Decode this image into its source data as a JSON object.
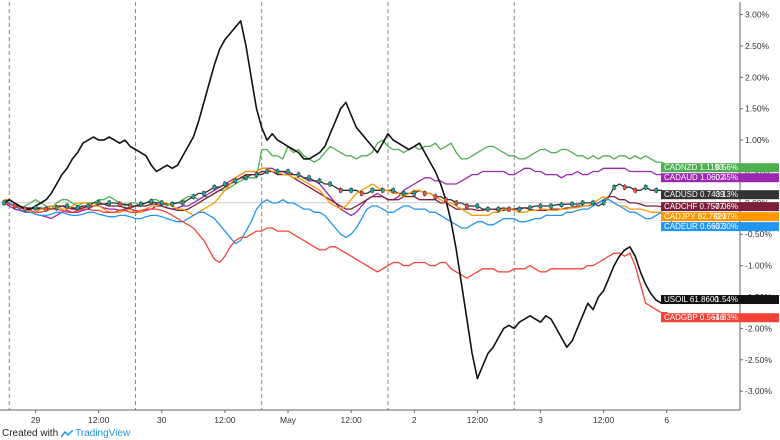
{
  "footer": {
    "prefix": "Created with",
    "brand": "TradingView"
  },
  "chart_data": {
    "type": "line",
    "y_axis": {
      "unit": "%",
      "range": [
        -3.3,
        3.2
      ],
      "ticks": [
        "3.00%",
        "2.50%",
        "2.00%",
        "1.50%",
        "1.00%",
        "0.50%",
        "0.00%",
        "-0.50%",
        "-1.00%",
        "-1.50%",
        "-2.00%",
        "-2.50%",
        "-3.00%"
      ],
      "tick_values": [
        3.0,
        2.5,
        2.0,
        1.5,
        1.0,
        0.5,
        0.0,
        -0.5,
        -1.0,
        -1.5,
        -2.0,
        -2.5,
        -3.0
      ],
      "position": "right"
    },
    "x_axis": {
      "ticks": [
        "29",
        "12:00",
        "30",
        "12:00",
        "May",
        "12:00",
        "2",
        "12:00",
        "3",
        "12:00",
        "6"
      ],
      "tick_index": [
        6,
        18,
        30,
        42,
        54,
        66,
        78,
        90,
        102,
        114,
        126
      ],
      "session_breaks": [
        1,
        25,
        49,
        73,
        97
      ]
    },
    "grid": false,
    "series": [
      {
        "name": "CADNZD",
        "last": "1.1193",
        "change": "0.56%",
        "color": "#4caf50",
        "values": [
          0.05,
          0.0,
          -0.05,
          -0.1,
          -0.05,
          0.0,
          0.05,
          0.0,
          -0.05,
          -0.1,
          0.0,
          0.05,
          0.05,
          0.0,
          -0.05,
          0.0,
          0.0,
          0.0,
          0.05,
          0.05,
          0.1,
          0.05,
          0.0,
          -0.05,
          0.0,
          0.0,
          -0.05,
          0.0,
          0.05,
          0.05,
          0.0,
          -0.05,
          0.0,
          0.0,
          0.05,
          0.1,
          0.1,
          0.05,
          0.1,
          0.1,
          0.15,
          0.2,
          0.2,
          0.25,
          0.3,
          0.35,
          0.4,
          0.4,
          0.4,
          0.85,
          0.85,
          0.75,
          0.75,
          0.7,
          0.9,
          0.8,
          0.85,
          0.75,
          0.7,
          0.65,
          0.7,
          0.8,
          0.9,
          0.85,
          0.8,
          0.75,
          0.75,
          0.7,
          0.75,
          0.75,
          0.8,
          0.95,
          1.0,
          0.9,
          0.85,
          0.85,
          0.8,
          0.85,
          0.9,
          0.85,
          0.9,
          0.9,
          0.95,
          0.85,
          0.9,
          0.95,
          0.8,
          0.7,
          0.7,
          0.75,
          0.8,
          0.85,
          0.9,
          0.9,
          0.85,
          0.8,
          0.75,
          0.75,
          0.7,
          0.7,
          0.75,
          0.8,
          0.85,
          0.85,
          0.8,
          0.8,
          0.85,
          0.85,
          0.8,
          0.75,
          0.75,
          0.7,
          0.75,
          0.7,
          0.75,
          0.75,
          0.7,
          0.75,
          0.75,
          0.7,
          0.75,
          0.7,
          0.75,
          0.7,
          0.65,
          0.65,
          0.6,
          0.56
        ]
      },
      {
        "name": "CADAUD",
        "last": "1.0602",
        "change": "0.45%",
        "color": "#9c27b0",
        "values": [
          0.0,
          -0.05,
          -0.1,
          -0.12,
          -0.15,
          -0.15,
          -0.18,
          -0.2,
          -0.22,
          -0.25,
          -0.2,
          -0.15,
          -0.12,
          -0.15,
          -0.15,
          -0.12,
          -0.1,
          -0.05,
          -0.05,
          -0.08,
          -0.1,
          -0.1,
          -0.12,
          -0.1,
          -0.1,
          -0.12,
          -0.15,
          -0.12,
          -0.1,
          -0.05,
          -0.05,
          -0.08,
          -0.1,
          -0.08,
          -0.05,
          -0.05,
          0.0,
          0.05,
          0.1,
          0.15,
          0.2,
          0.25,
          0.3,
          0.35,
          0.4,
          0.45,
          0.5,
          0.5,
          0.5,
          0.55,
          0.55,
          0.55,
          0.5,
          0.5,
          0.45,
          0.45,
          0.45,
          0.4,
          0.35,
          0.35,
          0.3,
          0.2,
          0.1,
          0.0,
          -0.1,
          -0.15,
          -0.2,
          -0.15,
          -0.05,
          0.05,
          0.1,
          0.15,
          0.1,
          0.05,
          0.05,
          0.1,
          0.2,
          0.25,
          0.3,
          0.35,
          0.4,
          0.4,
          0.35,
          0.35,
          0.3,
          0.3,
          0.3,
          0.35,
          0.4,
          0.45,
          0.45,
          0.5,
          0.5,
          0.5,
          0.5,
          0.5,
          0.45,
          0.45,
          0.5,
          0.55,
          0.55,
          0.5,
          0.5,
          0.45,
          0.45,
          0.45,
          0.4,
          0.45,
          0.45,
          0.5,
          0.45,
          0.45,
          0.5,
          0.5,
          0.55,
          0.55,
          0.55,
          0.55,
          0.55,
          0.5,
          0.5,
          0.5,
          0.5,
          0.5,
          0.45,
          0.45,
          0.45,
          0.45
        ]
      },
      {
        "name": "CADUSD",
        "last": "0.7439",
        "change": "0.13%",
        "color": "#333333",
        "values": [
          0.0,
          0.0,
          -0.05,
          -0.05,
          -0.1,
          -0.1,
          -0.08,
          -0.08,
          -0.1,
          -0.1,
          -0.08,
          -0.05,
          -0.05,
          -0.08,
          -0.08,
          -0.05,
          -0.05,
          0.0,
          0.0,
          -0.02,
          0.0,
          0.0,
          -0.02,
          -0.02,
          -0.05,
          -0.05,
          -0.02,
          0.0,
          0.02,
          0.0,
          0.0,
          -0.02,
          -0.02,
          0.0,
          0.0,
          0.05,
          0.1,
          0.15,
          0.15,
          0.2,
          0.25,
          0.25,
          0.3,
          0.3,
          0.35,
          0.4,
          0.4,
          0.45,
          0.45,
          0.45,
          0.5,
          0.5,
          0.5,
          0.5,
          0.5,
          0.45,
          0.45,
          0.4,
          0.4,
          0.35,
          0.35,
          0.3,
          0.3,
          0.25,
          0.2,
          0.2,
          0.2,
          0.2,
          0.15,
          0.15,
          0.2,
          0.2,
          0.2,
          0.2,
          0.2,
          0.15,
          0.15,
          0.15,
          0.15,
          0.2,
          0.15,
          0.15,
          0.1,
          0.1,
          0.05,
          0.05,
          0.0,
          0.0,
          -0.05,
          -0.05,
          -0.05,
          -0.1,
          -0.1,
          -0.1,
          -0.1,
          -0.08,
          -0.1,
          -0.1,
          -0.1,
          -0.08,
          -0.08,
          -0.05,
          -0.05,
          -0.05,
          -0.05,
          -0.03,
          -0.03,
          -0.02,
          -0.02,
          -0.02,
          0.0,
          0.0,
          0.0,
          -0.05,
          0.0,
          0.1,
          0.25,
          0.3,
          0.25,
          0.25,
          0.2,
          0.2,
          0.25,
          0.2,
          0.2,
          0.2,
          0.15,
          0.13
        ]
      },
      {
        "name": "CADCHF",
        "last": "0.7577",
        "change": "-0.06%",
        "color": "#7b1f3a",
        "values": [
          0.0,
          -0.02,
          -0.05,
          -0.05,
          -0.08,
          -0.08,
          -0.1,
          -0.1,
          -0.08,
          -0.05,
          -0.05,
          -0.05,
          -0.08,
          -0.1,
          -0.1,
          -0.08,
          -0.05,
          -0.05,
          -0.02,
          -0.02,
          -0.05,
          -0.05,
          -0.05,
          -0.08,
          -0.08,
          -0.05,
          -0.05,
          -0.05,
          -0.02,
          -0.02,
          -0.05,
          -0.08,
          -0.1,
          -0.12,
          -0.12,
          -0.1,
          -0.05,
          0.0,
          0.05,
          0.1,
          0.15,
          0.2,
          0.25,
          0.3,
          0.35,
          0.4,
          0.45,
          0.45,
          0.45,
          0.5,
          0.5,
          0.5,
          0.45,
          0.45,
          0.45,
          0.4,
          0.35,
          0.3,
          0.25,
          0.2,
          0.15,
          0.1,
          0.05,
          0.0,
          -0.05,
          -0.1,
          -0.1,
          -0.05,
          0.0,
          0.05,
          0.1,
          0.1,
          0.1,
          0.05,
          0.05,
          0.05,
          0.1,
          0.1,
          0.1,
          0.05,
          0.05,
          0.05,
          0.05,
          0.0,
          0.0,
          -0.05,
          -0.1,
          -0.1,
          -0.1,
          -0.1,
          -0.12,
          -0.12,
          -0.1,
          -0.1,
          -0.12,
          -0.12,
          -0.1,
          -0.1,
          -0.08,
          -0.08,
          -0.1,
          -0.12,
          -0.12,
          -0.12,
          -0.1,
          -0.1,
          -0.1,
          -0.08,
          -0.08,
          -0.05,
          -0.05,
          -0.05,
          -0.02,
          0.0,
          0.05,
          0.1,
          0.1,
          0.05,
          0.05,
          0.0,
          0.0,
          -0.02,
          -0.05,
          -0.05,
          -0.05,
          -0.06,
          -0.06,
          -0.06
        ]
      },
      {
        "name": "CADJPY",
        "last": "82.7520",
        "change": "-0.17%",
        "color": "#ff9800",
        "values": [
          0.05,
          0.05,
          0.0,
          -0.05,
          -0.1,
          -0.15,
          -0.15,
          -0.1,
          -0.1,
          -0.05,
          -0.05,
          -0.1,
          -0.1,
          -0.05,
          0.0,
          0.0,
          0.0,
          -0.05,
          -0.05,
          -0.1,
          -0.15,
          -0.15,
          -0.15,
          -0.12,
          -0.1,
          -0.15,
          -0.15,
          -0.1,
          -0.05,
          -0.05,
          0.0,
          0.0,
          -0.05,
          -0.1,
          -0.1,
          -0.15,
          -0.2,
          -0.15,
          -0.1,
          -0.05,
          0.0,
          0.1,
          0.2,
          0.3,
          0.4,
          0.45,
          0.5,
          0.5,
          0.5,
          0.55,
          0.55,
          0.5,
          0.5,
          0.45,
          0.45,
          0.4,
          0.4,
          0.35,
          0.3,
          0.25,
          0.2,
          0.1,
          0.0,
          -0.05,
          -0.1,
          -0.05,
          0.05,
          0.15,
          0.2,
          0.25,
          0.3,
          0.25,
          0.2,
          0.2,
          0.15,
          0.15,
          0.1,
          0.15,
          0.2,
          0.2,
          0.15,
          0.15,
          0.1,
          0.05,
          0.0,
          0.0,
          -0.05,
          -0.1,
          -0.15,
          -0.2,
          -0.2,
          -0.2,
          -0.2,
          -0.15,
          -0.15,
          -0.1,
          -0.1,
          -0.12,
          -0.15,
          -0.15,
          -0.12,
          -0.12,
          -0.1,
          -0.1,
          -0.12,
          -0.12,
          -0.1,
          -0.1,
          -0.08,
          -0.08,
          -0.05,
          -0.05,
          0.0,
          0.05,
          0.1,
          0.05,
          0.0,
          -0.05,
          -0.05,
          -0.1,
          -0.1,
          -0.1,
          -0.12,
          -0.15,
          -0.15,
          -0.15,
          -0.17,
          -0.17
        ]
      },
      {
        "name": "CADEUR",
        "last": "0.6637",
        "change": "-0.30%",
        "color": "#2196f3",
        "values": [
          0.0,
          0.0,
          -0.05,
          -0.1,
          -0.15,
          -0.15,
          -0.18,
          -0.2,
          -0.2,
          -0.18,
          -0.15,
          -0.15,
          -0.18,
          -0.2,
          -0.2,
          -0.18,
          -0.15,
          -0.15,
          -0.18,
          -0.2,
          -0.22,
          -0.22,
          -0.2,
          -0.2,
          -0.22,
          -0.25,
          -0.25,
          -0.22,
          -0.2,
          -0.2,
          -0.22,
          -0.25,
          -0.28,
          -0.3,
          -0.3,
          -0.25,
          -0.2,
          -0.15,
          -0.15,
          -0.2,
          -0.25,
          -0.35,
          -0.45,
          -0.55,
          -0.65,
          -0.6,
          -0.45,
          -0.3,
          -0.1,
          0.0,
          0.05,
          0.0,
          0.0,
          0.05,
          0.0,
          0.0,
          -0.05,
          -0.1,
          -0.1,
          -0.15,
          -0.15,
          -0.2,
          -0.3,
          -0.4,
          -0.5,
          -0.55,
          -0.5,
          -0.4,
          -0.25,
          -0.1,
          -0.05,
          -0.05,
          -0.1,
          -0.15,
          -0.15,
          -0.1,
          -0.05,
          -0.05,
          -0.1,
          -0.1,
          -0.1,
          -0.15,
          -0.15,
          -0.2,
          -0.25,
          -0.3,
          -0.35,
          -0.4,
          -0.4,
          -0.35,
          -0.3,
          -0.3,
          -0.35,
          -0.35,
          -0.3,
          -0.25,
          -0.25,
          -0.25,
          -0.3,
          -0.3,
          -0.28,
          -0.25,
          -0.25,
          -0.2,
          -0.2,
          -0.2,
          -0.2,
          -0.15,
          -0.15,
          -0.12,
          -0.1,
          -0.1,
          -0.05,
          0.0,
          0.05,
          0.05,
          0.0,
          -0.05,
          -0.1,
          -0.15,
          -0.15,
          -0.2,
          -0.25,
          -0.25,
          -0.2,
          -0.15,
          -0.2,
          -0.3
        ]
      },
      {
        "name": "CADGBP",
        "last": "0.5646",
        "change": "-1.83%",
        "color": "#f44336",
        "values": [
          0.0,
          -0.02,
          -0.05,
          -0.08,
          -0.1,
          -0.12,
          -0.15,
          -0.15,
          -0.12,
          -0.1,
          -0.1,
          -0.12,
          -0.15,
          -0.15,
          -0.12,
          -0.1,
          -0.1,
          -0.12,
          -0.12,
          -0.15,
          -0.15,
          -0.15,
          -0.12,
          -0.12,
          -0.15,
          -0.15,
          -0.12,
          -0.1,
          -0.1,
          -0.1,
          -0.12,
          -0.15,
          -0.2,
          -0.25,
          -0.3,
          -0.35,
          -0.4,
          -0.5,
          -0.6,
          -0.75,
          -0.9,
          -0.95,
          -0.85,
          -0.7,
          -0.6,
          -0.55,
          -0.55,
          -0.5,
          -0.45,
          -0.45,
          -0.4,
          -0.4,
          -0.45,
          -0.45,
          -0.45,
          -0.5,
          -0.55,
          -0.6,
          -0.65,
          -0.7,
          -0.75,
          -0.75,
          -0.7,
          -0.7,
          -0.75,
          -0.8,
          -0.85,
          -0.9,
          -0.95,
          -1.0,
          -1.05,
          -1.1,
          -1.05,
          -1.0,
          -0.95,
          -0.95,
          -1.0,
          -1.0,
          -0.95,
          -0.95,
          -0.95,
          -1.0,
          -1.0,
          -0.95,
          -0.95,
          -1.05,
          -1.1,
          -1.15,
          -1.2,
          -1.15,
          -1.1,
          -1.05,
          -1.05,
          -1.05,
          -1.1,
          -1.1,
          -1.1,
          -1.05,
          -1.05,
          -1.05,
          -1.0,
          -1.05,
          -1.1,
          -1.1,
          -1.05,
          -1.05,
          -1.05,
          -1.05,
          -1.05,
          -1.05,
          -1.05,
          -1.0,
          -1.0,
          -0.95,
          -0.9,
          -0.85,
          -0.8,
          -0.8,
          -0.85,
          -0.8,
          -1.0,
          -1.3,
          -1.6,
          -1.65,
          -1.7,
          -1.75,
          -1.75,
          -1.83
        ]
      },
      {
        "name": "USOIL",
        "last": "61.8600",
        "change": "-1.54%",
        "color": "#111111",
        "values": [
          0.0,
          0.05,
          0.0,
          -0.05,
          -0.1,
          -0.1,
          -0.05,
          0.0,
          0.05,
          0.15,
          0.3,
          0.45,
          0.55,
          0.7,
          0.8,
          0.95,
          1.0,
          1.05,
          1.0,
          1.0,
          1.05,
          1.0,
          0.95,
          1.0,
          0.9,
          0.85,
          0.8,
          0.75,
          0.6,
          0.5,
          0.55,
          0.6,
          0.55,
          0.6,
          0.75,
          0.9,
          1.05,
          1.3,
          1.6,
          1.9,
          2.2,
          2.45,
          2.6,
          2.7,
          2.8,
          2.9,
          2.5,
          2.0,
          1.5,
          1.2,
          1.0,
          1.1,
          1.0,
          0.95,
          0.9,
          0.85,
          0.8,
          0.7,
          0.7,
          0.75,
          0.8,
          0.9,
          1.1,
          1.3,
          1.5,
          1.6,
          1.4,
          1.2,
          1.1,
          1.0,
          0.9,
          0.8,
          0.95,
          1.1,
          1.0,
          0.95,
          0.9,
          0.85,
          0.9,
          0.95,
          0.8,
          0.65,
          0.5,
          0.3,
          0.05,
          -0.3,
          -0.75,
          -1.3,
          -1.85,
          -2.4,
          -2.8,
          -2.6,
          -2.4,
          -2.3,
          -2.15,
          -2.0,
          -1.95,
          -2.0,
          -1.9,
          -1.85,
          -1.8,
          -1.85,
          -1.9,
          -1.8,
          -1.85,
          -2.0,
          -2.15,
          -2.3,
          -2.2,
          -2.0,
          -1.8,
          -1.6,
          -1.7,
          -1.5,
          -1.4,
          -1.2,
          -1.0,
          -0.85,
          -0.75,
          -0.7,
          -0.85,
          -1.1,
          -1.3,
          -1.45,
          -1.55,
          -1.6,
          -1.5,
          -1.54
        ]
      }
    ]
  }
}
